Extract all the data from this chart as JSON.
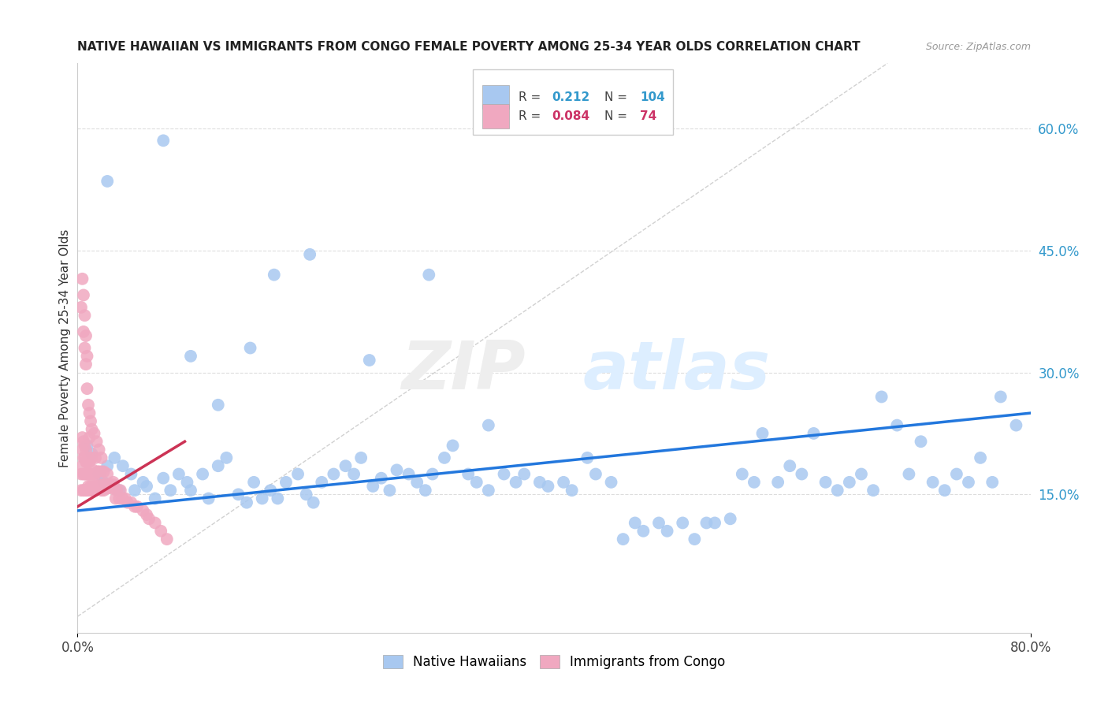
{
  "title": "NATIVE HAWAIIAN VS IMMIGRANTS FROM CONGO FEMALE POVERTY AMONG 25-34 YEAR OLDS CORRELATION CHART",
  "source": "Source: ZipAtlas.com",
  "ylabel": "Female Poverty Among 25-34 Year Olds",
  "xlim": [
    0.0,
    0.8
  ],
  "ylim": [
    -0.02,
    0.68
  ],
  "y_tick_vals_right": [
    0.15,
    0.3,
    0.45,
    0.6
  ],
  "y_tick_labels_right": [
    "15.0%",
    "30.0%",
    "45.0%",
    "60.0%"
  ],
  "blue_R": "0.212",
  "blue_N": "104",
  "pink_R": "0.084",
  "pink_N": "74",
  "blue_color": "#A8C8F0",
  "pink_color": "#F0A8C0",
  "blue_line_color": "#2277DD",
  "pink_line_color": "#CC3355",
  "diagonal_color": "#CCCCCC",
  "background_color": "#FFFFFF",
  "grid_color": "#DDDDDD",
  "blue_line": {
    "x0": 0.0,
    "x1": 0.8,
    "y0": 0.13,
    "y1": 0.25
  },
  "pink_line": {
    "x0": 0.0,
    "x1": 0.09,
    "y0": 0.135,
    "y1": 0.215
  },
  "blue_x": [
    0.012,
    0.025,
    0.018,
    0.031,
    0.008,
    0.022,
    0.035,
    0.045,
    0.038,
    0.055,
    0.048,
    0.065,
    0.058,
    0.072,
    0.085,
    0.078,
    0.092,
    0.105,
    0.095,
    0.118,
    0.11,
    0.125,
    0.135,
    0.148,
    0.142,
    0.155,
    0.162,
    0.175,
    0.168,
    0.185,
    0.192,
    0.205,
    0.198,
    0.215,
    0.225,
    0.238,
    0.232,
    0.248,
    0.255,
    0.268,
    0.262,
    0.278,
    0.285,
    0.298,
    0.292,
    0.308,
    0.315,
    0.328,
    0.335,
    0.345,
    0.358,
    0.368,
    0.375,
    0.388,
    0.395,
    0.408,
    0.415,
    0.428,
    0.435,
    0.448,
    0.458,
    0.468,
    0.475,
    0.488,
    0.495,
    0.508,
    0.518,
    0.528,
    0.535,
    0.548,
    0.558,
    0.568,
    0.575,
    0.588,
    0.598,
    0.608,
    0.618,
    0.628,
    0.638,
    0.648,
    0.658,
    0.668,
    0.675,
    0.688,
    0.698,
    0.708,
    0.718,
    0.728,
    0.738,
    0.748,
    0.758,
    0.768,
    0.775,
    0.788,
    0.095,
    0.145,
    0.195,
    0.245,
    0.295,
    0.345,
    0.025,
    0.072,
    0.118,
    0.165
  ],
  "blue_y": [
    0.2,
    0.185,
    0.175,
    0.195,
    0.21,
    0.165,
    0.155,
    0.175,
    0.185,
    0.165,
    0.155,
    0.145,
    0.16,
    0.17,
    0.175,
    0.155,
    0.165,
    0.175,
    0.155,
    0.185,
    0.145,
    0.195,
    0.15,
    0.165,
    0.14,
    0.145,
    0.155,
    0.165,
    0.145,
    0.175,
    0.15,
    0.165,
    0.14,
    0.175,
    0.185,
    0.195,
    0.175,
    0.16,
    0.17,
    0.18,
    0.155,
    0.175,
    0.165,
    0.175,
    0.155,
    0.195,
    0.21,
    0.175,
    0.165,
    0.155,
    0.175,
    0.165,
    0.175,
    0.165,
    0.16,
    0.165,
    0.155,
    0.195,
    0.175,
    0.165,
    0.095,
    0.115,
    0.105,
    0.115,
    0.105,
    0.115,
    0.095,
    0.115,
    0.115,
    0.12,
    0.175,
    0.165,
    0.225,
    0.165,
    0.185,
    0.175,
    0.225,
    0.165,
    0.155,
    0.165,
    0.175,
    0.155,
    0.27,
    0.235,
    0.175,
    0.215,
    0.165,
    0.155,
    0.175,
    0.165,
    0.195,
    0.165,
    0.27,
    0.235,
    0.32,
    0.33,
    0.445,
    0.315,
    0.42,
    0.235,
    0.535,
    0.585,
    0.26,
    0.42
  ],
  "pink_x": [
    0.003,
    0.003,
    0.004,
    0.004,
    0.004,
    0.005,
    0.005,
    0.005,
    0.005,
    0.006,
    0.006,
    0.006,
    0.006,
    0.007,
    0.007,
    0.007,
    0.007,
    0.008,
    0.008,
    0.008,
    0.009,
    0.009,
    0.009,
    0.01,
    0.01,
    0.01,
    0.01,
    0.011,
    0.011,
    0.012,
    0.012,
    0.012,
    0.013,
    0.013,
    0.014,
    0.014,
    0.015,
    0.015,
    0.015,
    0.016,
    0.017,
    0.017,
    0.018,
    0.018,
    0.019,
    0.02,
    0.02,
    0.021,
    0.022,
    0.022,
    0.023,
    0.024,
    0.025,
    0.026,
    0.027,
    0.028,
    0.03,
    0.031,
    0.032,
    0.033,
    0.035,
    0.036,
    0.038,
    0.04,
    0.042,
    0.045,
    0.048,
    0.05,
    0.055,
    0.058,
    0.06,
    0.065,
    0.07,
    0.075
  ],
  "pink_y": [
    0.155,
    0.175,
    0.185,
    0.205,
    0.22,
    0.155,
    0.175,
    0.195,
    0.215,
    0.155,
    0.175,
    0.195,
    0.21,
    0.155,
    0.175,
    0.19,
    0.205,
    0.155,
    0.175,
    0.19,
    0.16,
    0.175,
    0.195,
    0.155,
    0.175,
    0.19,
    0.22,
    0.16,
    0.175,
    0.155,
    0.175,
    0.195,
    0.16,
    0.18,
    0.16,
    0.175,
    0.155,
    0.175,
    0.195,
    0.16,
    0.16,
    0.178,
    0.158,
    0.178,
    0.162,
    0.155,
    0.178,
    0.162,
    0.155,
    0.178,
    0.162,
    0.158,
    0.162,
    0.158,
    0.162,
    0.158,
    0.162,
    0.158,
    0.145,
    0.155,
    0.145,
    0.155,
    0.145,
    0.145,
    0.14,
    0.14,
    0.135,
    0.135,
    0.13,
    0.125,
    0.12,
    0.115,
    0.105,
    0.095
  ],
  "pink_extra_x": [
    0.003,
    0.004,
    0.005,
    0.005,
    0.006,
    0.006,
    0.007,
    0.007,
    0.008,
    0.008,
    0.009,
    0.01,
    0.011,
    0.012,
    0.014,
    0.016,
    0.018,
    0.02,
    0.025,
    0.03
  ],
  "pink_extra_y": [
    0.38,
    0.415,
    0.35,
    0.395,
    0.33,
    0.37,
    0.31,
    0.345,
    0.28,
    0.32,
    0.26,
    0.25,
    0.24,
    0.23,
    0.225,
    0.215,
    0.205,
    0.195,
    0.175,
    0.165
  ]
}
